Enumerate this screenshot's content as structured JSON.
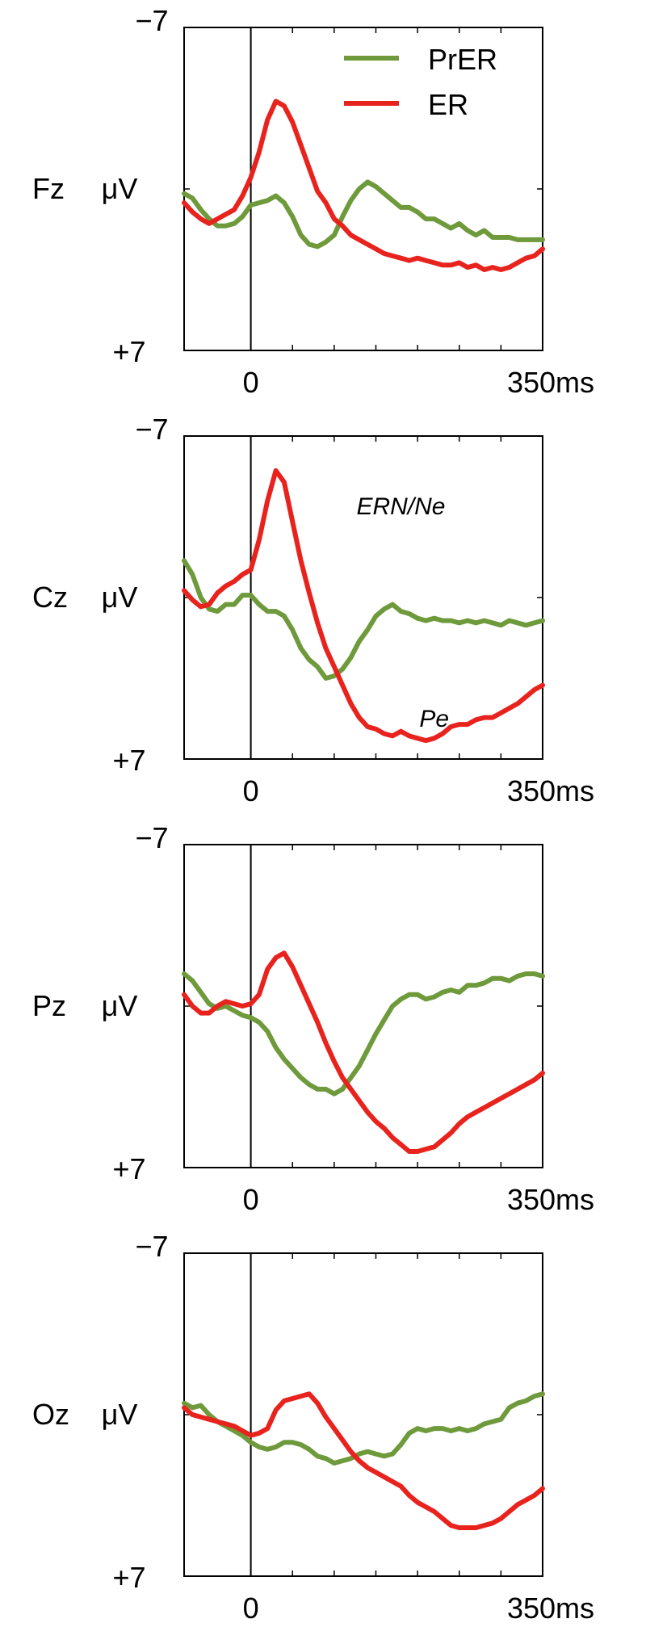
{
  "colors": {
    "PrER": "#6f9a3c",
    "ER": "#e8231e",
    "axis": "#000000"
  },
  "legend": [
    {
      "label": "PrER",
      "color": "#6f9a3c"
    },
    {
      "label": "ER",
      "color": "#e8231e"
    }
  ],
  "chart_data": [
    {
      "type": "line",
      "channel": "Fz",
      "ylabel": "μV",
      "ytick_top": "−7",
      "ytick_bottom": "+7",
      "ylim": [
        -7,
        7
      ],
      "y_inverted": true,
      "xtick_zero": "0",
      "xtick_end": "350ms",
      "xlim": [
        -80,
        350
      ],
      "series": [
        {
          "name": "PrER",
          "x": [
            -80,
            -70,
            -60,
            -50,
            -40,
            -30,
            -20,
            -10,
            0,
            10,
            20,
            30,
            40,
            50,
            60,
            70,
            80,
            90,
            100,
            110,
            120,
            130,
            140,
            150,
            160,
            170,
            180,
            190,
            200,
            210,
            220,
            230,
            240,
            250,
            260,
            270,
            280,
            290,
            300,
            310,
            320,
            330,
            340,
            350
          ],
          "values": [
            0.2,
            0.4,
            0.9,
            1.3,
            1.6,
            1.6,
            1.5,
            1.2,
            0.7,
            0.6,
            0.5,
            0.3,
            0.6,
            1.2,
            2.0,
            2.4,
            2.5,
            2.3,
            2.0,
            1.2,
            0.5,
            0.0,
            -0.3,
            -0.1,
            0.2,
            0.5,
            0.8,
            0.8,
            1.0,
            1.3,
            1.3,
            1.5,
            1.7,
            1.5,
            1.8,
            2.0,
            1.8,
            2.1,
            2.1,
            2.1,
            2.2,
            2.2,
            2.2,
            2.2
          ]
        },
        {
          "name": "ER",
          "x": [
            -80,
            -70,
            -60,
            -50,
            -40,
            -30,
            -20,
            -10,
            0,
            10,
            20,
            30,
            40,
            50,
            60,
            70,
            80,
            90,
            100,
            110,
            120,
            130,
            140,
            150,
            160,
            170,
            180,
            190,
            200,
            210,
            220,
            230,
            240,
            250,
            260,
            270,
            280,
            290,
            300,
            310,
            320,
            330,
            340,
            350
          ],
          "values": [
            0.6,
            1.0,
            1.3,
            1.5,
            1.3,
            1.1,
            0.9,
            0.3,
            -0.5,
            -1.6,
            -3.0,
            -3.8,
            -3.6,
            -2.9,
            -1.9,
            -0.9,
            0.1,
            0.6,
            1.3,
            1.6,
            2.0,
            2.2,
            2.4,
            2.6,
            2.8,
            2.9,
            3.0,
            3.1,
            3.0,
            3.1,
            3.2,
            3.3,
            3.3,
            3.2,
            3.4,
            3.3,
            3.5,
            3.4,
            3.5,
            3.4,
            3.2,
            3.0,
            2.9,
            2.6
          ]
        }
      ]
    },
    {
      "type": "line",
      "channel": "Cz",
      "ylabel": "μV",
      "ytick_top": "−7",
      "ytick_bottom": "+7",
      "ylim": [
        -7,
        7
      ],
      "y_inverted": true,
      "xtick_zero": "0",
      "xtick_end": "350ms",
      "xlim": [
        -80,
        350
      ],
      "annotations": [
        {
          "text": "ERN/Ne",
          "x": 180,
          "y": -3.6
        },
        {
          "text": "Pe",
          "x": 220,
          "y": 5.6
        }
      ],
      "series": [
        {
          "name": "PrER",
          "x": [
            -80,
            -70,
            -60,
            -50,
            -40,
            -30,
            -20,
            -10,
            0,
            10,
            20,
            30,
            40,
            50,
            60,
            70,
            80,
            90,
            100,
            110,
            120,
            130,
            140,
            150,
            160,
            170,
            180,
            190,
            200,
            210,
            220,
            230,
            240,
            250,
            260,
            270,
            280,
            290,
            300,
            310,
            320,
            330,
            340,
            350
          ],
          "values": [
            -1.6,
            -1.0,
            0.0,
            0.5,
            0.6,
            0.3,
            0.3,
            -0.1,
            -0.1,
            0.3,
            0.6,
            0.6,
            0.8,
            1.4,
            2.2,
            2.7,
            3.0,
            3.5,
            3.4,
            3.1,
            2.6,
            1.9,
            1.4,
            0.8,
            0.5,
            0.3,
            0.6,
            0.7,
            0.9,
            1.0,
            0.9,
            1.0,
            1.0,
            1.1,
            1.0,
            1.1,
            1.0,
            1.1,
            1.2,
            1.0,
            1.1,
            1.2,
            1.1,
            1.0
          ]
        },
        {
          "name": "ER",
          "x": [
            -80,
            -70,
            -60,
            -50,
            -40,
            -30,
            -20,
            -10,
            0,
            10,
            20,
            30,
            40,
            50,
            60,
            70,
            80,
            90,
            100,
            110,
            120,
            130,
            140,
            150,
            160,
            170,
            180,
            190,
            200,
            210,
            220,
            230,
            240,
            250,
            260,
            270,
            280,
            290,
            300,
            310,
            320,
            330,
            340,
            350
          ],
          "values": [
            -0.3,
            0.1,
            0.4,
            0.3,
            -0.2,
            -0.5,
            -0.7,
            -1.0,
            -1.2,
            -2.5,
            -4.2,
            -5.5,
            -5.0,
            -3.3,
            -1.6,
            -0.2,
            1.1,
            2.2,
            3.0,
            3.8,
            4.6,
            5.2,
            5.6,
            5.7,
            5.9,
            6.0,
            5.8,
            6.0,
            6.1,
            6.2,
            6.1,
            5.9,
            5.6,
            5.5,
            5.5,
            5.3,
            5.2,
            5.2,
            5.0,
            4.8,
            4.6,
            4.3,
            4.0,
            3.8
          ]
        }
      ]
    },
    {
      "type": "line",
      "channel": "Pz",
      "ylabel": "μV",
      "ytick_top": "−7",
      "ytick_bottom": "+7",
      "ylim": [
        -7,
        7
      ],
      "y_inverted": true,
      "xtick_zero": "0",
      "xtick_end": "350ms",
      "xlim": [
        -80,
        350
      ],
      "series": [
        {
          "name": "PrER",
          "x": [
            -80,
            -70,
            -60,
            -50,
            -40,
            -30,
            -20,
            -10,
            0,
            10,
            20,
            30,
            40,
            50,
            60,
            70,
            80,
            90,
            100,
            110,
            120,
            130,
            140,
            150,
            160,
            170,
            180,
            190,
            200,
            210,
            220,
            230,
            240,
            250,
            260,
            270,
            280,
            290,
            300,
            310,
            320,
            330,
            340,
            350
          ],
          "values": [
            -1.4,
            -1.1,
            -0.6,
            -0.1,
            0.1,
            0.0,
            0.2,
            0.4,
            0.5,
            0.7,
            1.1,
            1.8,
            2.3,
            2.7,
            3.1,
            3.4,
            3.6,
            3.6,
            3.8,
            3.6,
            3.1,
            2.6,
            1.9,
            1.2,
            0.6,
            0.0,
            -0.3,
            -0.5,
            -0.5,
            -0.3,
            -0.4,
            -0.6,
            -0.7,
            -0.6,
            -0.9,
            -0.9,
            -1.0,
            -1.2,
            -1.2,
            -1.1,
            -1.3,
            -1.4,
            -1.4,
            -1.3
          ]
        },
        {
          "name": "ER",
          "x": [
            -80,
            -70,
            -60,
            -50,
            -40,
            -30,
            -20,
            -10,
            0,
            10,
            20,
            30,
            40,
            50,
            60,
            70,
            80,
            90,
            100,
            110,
            120,
            130,
            140,
            150,
            160,
            170,
            180,
            190,
            200,
            210,
            220,
            230,
            240,
            250,
            260,
            270,
            280,
            290,
            300,
            310,
            320,
            330,
            340,
            350
          ],
          "values": [
            -0.5,
            0.0,
            0.3,
            0.3,
            0.0,
            -0.2,
            -0.1,
            0.0,
            -0.1,
            -0.5,
            -1.6,
            -2.1,
            -2.3,
            -1.7,
            -0.9,
            -0.1,
            0.7,
            1.6,
            2.4,
            3.1,
            3.6,
            4.1,
            4.6,
            5.0,
            5.3,
            5.7,
            6.0,
            6.3,
            6.3,
            6.2,
            6.1,
            5.8,
            5.5,
            5.1,
            4.8,
            4.6,
            4.4,
            4.2,
            4.0,
            3.8,
            3.6,
            3.4,
            3.2,
            2.9
          ]
        }
      ]
    },
    {
      "type": "line",
      "channel": "Oz",
      "ylabel": "μV",
      "ytick_top": "−7",
      "ytick_bottom": "+7",
      "ylim": [
        -7,
        7
      ],
      "y_inverted": true,
      "xtick_zero": "0",
      "xtick_end": "350ms",
      "xlim": [
        -80,
        350
      ],
      "series": [
        {
          "name": "PrER",
          "x": [
            -80,
            -70,
            -60,
            -50,
            -40,
            -30,
            -20,
            -10,
            0,
            10,
            20,
            30,
            40,
            50,
            60,
            70,
            80,
            90,
            100,
            110,
            120,
            130,
            140,
            150,
            160,
            170,
            180,
            190,
            200,
            210,
            220,
            230,
            240,
            250,
            260,
            270,
            280,
            290,
            300,
            310,
            320,
            330,
            340,
            350
          ],
          "values": [
            -0.5,
            -0.3,
            -0.4,
            0.0,
            0.3,
            0.5,
            0.7,
            0.9,
            1.2,
            1.4,
            1.5,
            1.4,
            1.2,
            1.2,
            1.3,
            1.5,
            1.8,
            1.9,
            2.1,
            2.0,
            1.9,
            1.7,
            1.6,
            1.7,
            1.8,
            1.7,
            1.3,
            0.8,
            0.6,
            0.7,
            0.6,
            0.6,
            0.7,
            0.6,
            0.7,
            0.6,
            0.4,
            0.3,
            0.2,
            -0.3,
            -0.5,
            -0.6,
            -0.8,
            -0.9
          ]
        },
        {
          "name": "ER",
          "x": [
            -80,
            -70,
            -60,
            -50,
            -40,
            -30,
            -20,
            -10,
            0,
            10,
            20,
            30,
            40,
            50,
            60,
            70,
            80,
            90,
            100,
            110,
            120,
            130,
            140,
            150,
            160,
            170,
            180,
            190,
            200,
            210,
            220,
            230,
            240,
            250,
            260,
            270,
            280,
            290,
            300,
            310,
            320,
            330,
            340,
            350
          ],
          "values": [
            -0.3,
            0.0,
            0.1,
            0.2,
            0.3,
            0.4,
            0.5,
            0.7,
            0.9,
            0.8,
            0.6,
            -0.2,
            -0.6,
            -0.7,
            -0.8,
            -0.9,
            -0.5,
            0.1,
            0.6,
            1.1,
            1.6,
            2.0,
            2.3,
            2.5,
            2.7,
            2.9,
            3.1,
            3.5,
            3.8,
            4.0,
            4.2,
            4.5,
            4.8,
            4.9,
            4.9,
            4.9,
            4.8,
            4.7,
            4.5,
            4.2,
            3.9,
            3.7,
            3.5,
            3.2
          ]
        }
      ]
    }
  ]
}
